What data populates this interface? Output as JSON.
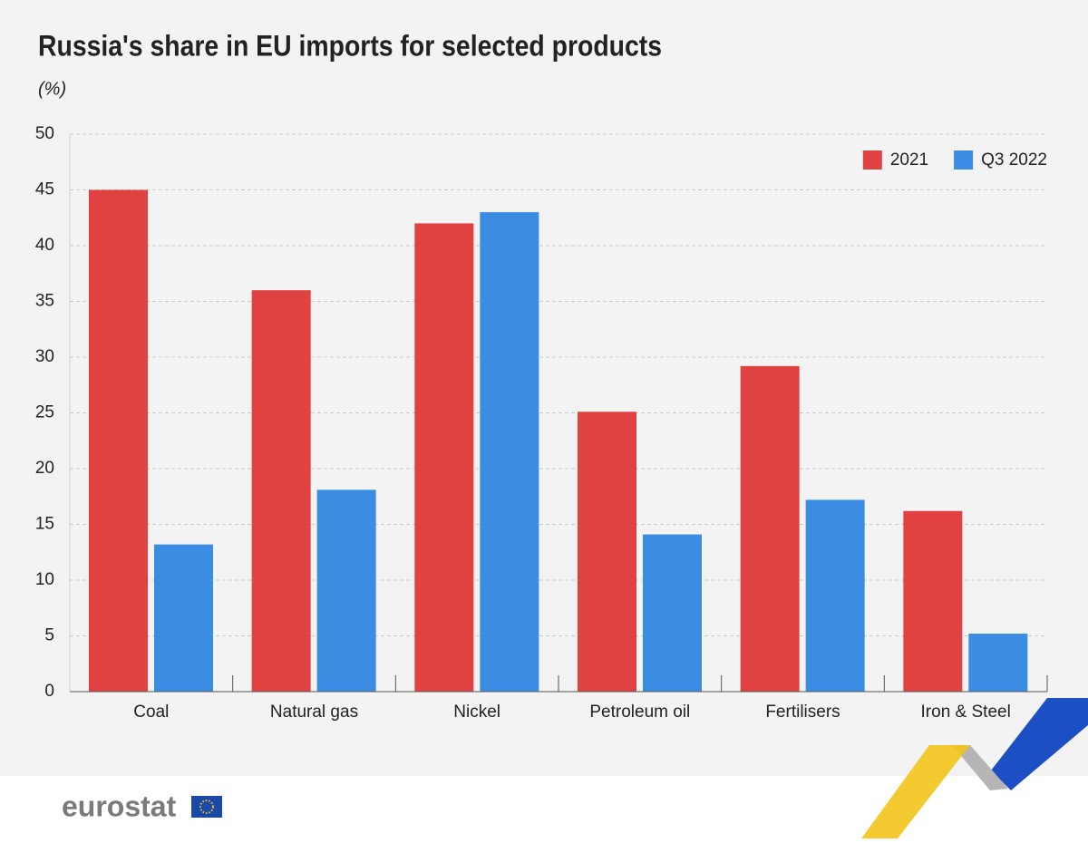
{
  "chart_data": {
    "type": "bar",
    "title": "Russia's share in EU imports for selected products",
    "subtitle": "(%)",
    "categories": [
      "Coal",
      "Natural gas",
      "Nickel",
      "Petroleum oil",
      "Fertilisers",
      "Iron & Steel"
    ],
    "series": [
      {
        "name": "2021",
        "color": "#e04141",
        "values": [
          45,
          36,
          42,
          25.1,
          29.2,
          16.2
        ]
      },
      {
        "name": "Q3 2022",
        "color": "#3a8de2",
        "values": [
          13.2,
          18.1,
          43,
          14.1,
          17.2,
          5.2
        ]
      }
    ],
    "ylim": [
      0,
      50
    ],
    "yticks": [
      0,
      5,
      10,
      15,
      20,
      25,
      30,
      35,
      40,
      45,
      50
    ],
    "grid": true,
    "legend": "top-right"
  },
  "footer": {
    "logo": "eurostat"
  }
}
